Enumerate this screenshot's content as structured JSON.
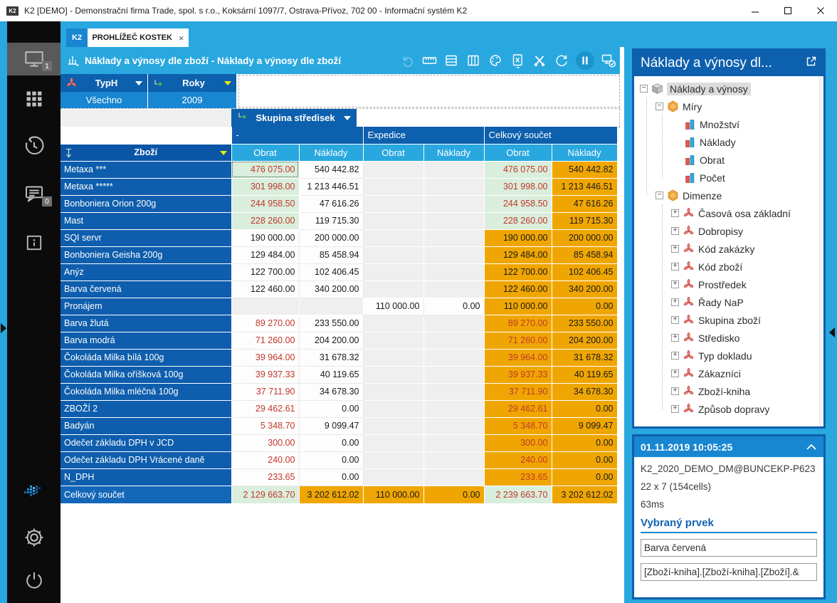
{
  "window": {
    "title": "K2 [DEMO] - Demonstrační firma Trade, spol. s r.o., Koksární 1097/7, Ostrava-Přívoz, 702 00 - Informační systém K2"
  },
  "tabs": {
    "home": "K2",
    "active": "PROHLÍŽEČ KOSTEK",
    "close": "×"
  },
  "sidebar": {
    "items": [
      {
        "icon": "desktop",
        "badge": "1",
        "active": true
      },
      {
        "icon": "apps-grid"
      },
      {
        "icon": "history"
      },
      {
        "icon": "messages",
        "badge": "0"
      },
      {
        "icon": "info"
      }
    ],
    "bottom_items": [
      {
        "icon": "k2-logo"
      },
      {
        "icon": "settings-gear"
      },
      {
        "icon": "power"
      }
    ]
  },
  "toolbar": {
    "title": "Náklady a výnosy dle zboží - Náklady a výnosy dle zboží",
    "icons": [
      "undo",
      "ruler",
      "rows",
      "columns",
      "palette",
      "excel-export",
      "design-tools",
      "refresh",
      "pause",
      "connection-status"
    ]
  },
  "filters": [
    {
      "name": "TypH",
      "value": "Všechno",
      "icon": "dimension",
      "arrow": "white"
    },
    {
      "name": "Roky",
      "value": "2009",
      "icon": "hierarchy",
      "arrow": "yellow"
    }
  ],
  "column_filter": {
    "name": "Skupina středisek",
    "icon": "hierarchy",
    "arrow": "white"
  },
  "pivot": {
    "row_header": "Zboží",
    "groups": [
      "-",
      "Expedice",
      "Celkový součet"
    ],
    "measures": [
      "Obrat",
      "Náklady"
    ],
    "rows": [
      {
        "label": "Metaxa ***",
        "cells": [
          [
            "476 075.00",
            "g",
            "r",
            "sel"
          ],
          [
            "540 442.82",
            "w",
            "k"
          ],
          [
            "",
            "e",
            "k"
          ],
          [
            "",
            "e",
            "k"
          ],
          [
            "476 075.00",
            "g",
            "r"
          ],
          [
            "540 442.82",
            "o",
            "k"
          ]
        ]
      },
      {
        "label": "Metaxa *****",
        "cells": [
          [
            "301 998.00",
            "g",
            "r"
          ],
          [
            "1 213 446.51",
            "w",
            "k"
          ],
          [
            "",
            "e",
            "k"
          ],
          [
            "",
            "e",
            "k"
          ],
          [
            "301 998.00",
            "g",
            "r"
          ],
          [
            "1 213 446.51",
            "o",
            "k"
          ]
        ]
      },
      {
        "label": "Bonboniera Orion 200g",
        "cells": [
          [
            "244 958.50",
            "g",
            "r"
          ],
          [
            "47 616.26",
            "w",
            "k"
          ],
          [
            "",
            "e",
            "k"
          ],
          [
            "",
            "e",
            "k"
          ],
          [
            "244 958.50",
            "g",
            "r"
          ],
          [
            "47 616.26",
            "o",
            "k"
          ]
        ]
      },
      {
        "label": "Mast",
        "cells": [
          [
            "228 260.00",
            "g",
            "r"
          ],
          [
            "119 715.30",
            "w",
            "k"
          ],
          [
            "",
            "e",
            "k"
          ],
          [
            "",
            "e",
            "k"
          ],
          [
            "228 260.00",
            "g",
            "r"
          ],
          [
            "119 715.30",
            "o",
            "k"
          ]
        ]
      },
      {
        "label": "SQI servr",
        "cells": [
          [
            "190 000.00",
            "w",
            "k"
          ],
          [
            "200 000.00",
            "w",
            "k"
          ],
          [
            "",
            "e",
            "k"
          ],
          [
            "",
            "e",
            "k"
          ],
          [
            "190 000.00",
            "o",
            "k"
          ],
          [
            "200 000.00",
            "o",
            "k"
          ]
        ]
      },
      {
        "label": "Bonboniera Geisha 200g",
        "cells": [
          [
            "129 484.00",
            "w",
            "k"
          ],
          [
            "85 458.94",
            "w",
            "k"
          ],
          [
            "",
            "e",
            "k"
          ],
          [
            "",
            "e",
            "k"
          ],
          [
            "129 484.00",
            "o",
            "k"
          ],
          [
            "85 458.94",
            "o",
            "k"
          ]
        ]
      },
      {
        "label": "Anýz",
        "cells": [
          [
            "122 700.00",
            "w",
            "k"
          ],
          [
            "102 406.45",
            "w",
            "k"
          ],
          [
            "",
            "e",
            "k"
          ],
          [
            "",
            "e",
            "k"
          ],
          [
            "122 700.00",
            "o",
            "k"
          ],
          [
            "102 406.45",
            "o",
            "k"
          ]
        ]
      },
      {
        "label": "Barva červená",
        "cells": [
          [
            "122 460.00",
            "w",
            "k"
          ],
          [
            "340 200.00",
            "w",
            "k"
          ],
          [
            "",
            "e",
            "k"
          ],
          [
            "",
            "e",
            "k"
          ],
          [
            "122 460.00",
            "o",
            "k"
          ],
          [
            "340 200.00",
            "o",
            "k"
          ]
        ]
      },
      {
        "label": "Pronájem",
        "cells": [
          [
            "",
            "e",
            "k"
          ],
          [
            "",
            "e",
            "k"
          ],
          [
            "110 000.00",
            "w",
            "k"
          ],
          [
            "0.00",
            "w",
            "k"
          ],
          [
            "110 000.00",
            "o",
            "k"
          ],
          [
            "0.00",
            "o",
            "k"
          ]
        ]
      },
      {
        "label": "Barva žlutá",
        "cells": [
          [
            "89 270.00",
            "w",
            "r"
          ],
          [
            "233 550.00",
            "w",
            "k"
          ],
          [
            "",
            "e",
            "k"
          ],
          [
            "",
            "e",
            "k"
          ],
          [
            "89 270.00",
            "o",
            "r"
          ],
          [
            "233 550.00",
            "o",
            "k"
          ]
        ]
      },
      {
        "label": "Barva modrá",
        "cells": [
          [
            "71 260.00",
            "w",
            "r"
          ],
          [
            "204 200.00",
            "w",
            "k"
          ],
          [
            "",
            "e",
            "k"
          ],
          [
            "",
            "e",
            "k"
          ],
          [
            "71 260.00",
            "o",
            "r"
          ],
          [
            "204 200.00",
            "o",
            "k"
          ]
        ]
      },
      {
        "label": "Čokoláda Milka bílá 100g",
        "cells": [
          [
            "39 964.00",
            "w",
            "r"
          ],
          [
            "31 678.32",
            "w",
            "k"
          ],
          [
            "",
            "e",
            "k"
          ],
          [
            "",
            "e",
            "k"
          ],
          [
            "39 964.00",
            "o",
            "r"
          ],
          [
            "31 678.32",
            "o",
            "k"
          ]
        ]
      },
      {
        "label": "Čokoláda Milka oříšková 100g",
        "cells": [
          [
            "39 937.33",
            "w",
            "r"
          ],
          [
            "40 119.65",
            "w",
            "k"
          ],
          [
            "",
            "e",
            "k"
          ],
          [
            "",
            "e",
            "k"
          ],
          [
            "39 937.33",
            "o",
            "r"
          ],
          [
            "40 119.65",
            "o",
            "k"
          ]
        ]
      },
      {
        "label": "Čokoláda Milka mléčná 100g",
        "cells": [
          [
            "37 711.90",
            "w",
            "r"
          ],
          [
            "34 678.30",
            "w",
            "k"
          ],
          [
            "",
            "e",
            "k"
          ],
          [
            "",
            "e",
            "k"
          ],
          [
            "37 711.90",
            "o",
            "r"
          ],
          [
            "34 678.30",
            "o",
            "k"
          ]
        ]
      },
      {
        "label": "ZBOŽÍ 2",
        "cells": [
          [
            "29 462.61",
            "w",
            "r"
          ],
          [
            "0.00",
            "w",
            "k"
          ],
          [
            "",
            "e",
            "k"
          ],
          [
            "",
            "e",
            "k"
          ],
          [
            "29 462.61",
            "o",
            "r"
          ],
          [
            "0.00",
            "o",
            "k"
          ]
        ]
      },
      {
        "label": "Badyán",
        "cells": [
          [
            "5 348.70",
            "w",
            "r"
          ],
          [
            "9 099.47",
            "w",
            "k"
          ],
          [
            "",
            "e",
            "k"
          ],
          [
            "",
            "e",
            "k"
          ],
          [
            "5 348.70",
            "o",
            "r"
          ],
          [
            "9 099.47",
            "o",
            "k"
          ]
        ]
      },
      {
        "label": "Odečet základu DPH v JCD",
        "cells": [
          [
            "300.00",
            "w",
            "r"
          ],
          [
            "0.00",
            "w",
            "k"
          ],
          [
            "",
            "e",
            "k"
          ],
          [
            "",
            "e",
            "k"
          ],
          [
            "300.00",
            "o",
            "r"
          ],
          [
            "0.00",
            "o",
            "k"
          ]
        ]
      },
      {
        "label": "Odečet základu DPH Vrácené daně",
        "cells": [
          [
            "240.00",
            "w",
            "r"
          ],
          [
            "0.00",
            "w",
            "k"
          ],
          [
            "",
            "e",
            "k"
          ],
          [
            "",
            "e",
            "k"
          ],
          [
            "240.00",
            "o",
            "r"
          ],
          [
            "0.00",
            "o",
            "k"
          ]
        ]
      },
      {
        "label": "N_DPH",
        "cells": [
          [
            "233.65",
            "w",
            "r"
          ],
          [
            "0.00",
            "w",
            "k"
          ],
          [
            "",
            "e",
            "k"
          ],
          [
            "",
            "e",
            "k"
          ],
          [
            "233.65",
            "o",
            "r"
          ],
          [
            "0.00",
            "o",
            "k"
          ]
        ]
      },
      {
        "label": "Celkový součet",
        "total": true,
        "cells": [
          [
            "2 129 663.70",
            "g",
            "r"
          ],
          [
            "3 202 612.02",
            "o",
            "k"
          ],
          [
            "110 000.00",
            "o",
            "k"
          ],
          [
            "0.00",
            "o",
            "k"
          ],
          [
            "2 239 663.70",
            "g",
            "r"
          ],
          [
            "3 202 612.02",
            "o",
            "k"
          ]
        ]
      }
    ]
  },
  "side_panel": {
    "title": "Náklady a výnosy dl...",
    "tree": [
      {
        "label": "Náklady a výnosy",
        "icon": "cube",
        "level": 0,
        "exp": "-",
        "selected": true
      },
      {
        "label": "Míry",
        "icon": "measure-folder",
        "level": 1,
        "exp": "-"
      },
      {
        "label": "Množství",
        "icon": "measure",
        "level": 2
      },
      {
        "label": "Náklady",
        "icon": "measure",
        "level": 2
      },
      {
        "label": "Obrat",
        "icon": "measure",
        "level": 2
      },
      {
        "label": "Počet",
        "icon": "measure",
        "level": 2
      },
      {
        "label": "Dimenze",
        "icon": "measure-folder",
        "level": 1,
        "exp": "-"
      },
      {
        "label": "Časová osa základní",
        "icon": "dimension",
        "level": 2,
        "exp": "+"
      },
      {
        "label": "Dobropisy",
        "icon": "dimension",
        "level": 2,
        "exp": "+"
      },
      {
        "label": "Kód zakázky",
        "icon": "dimension",
        "level": 2,
        "exp": "+"
      },
      {
        "label": "Kód zboží",
        "icon": "dimension",
        "level": 2,
        "exp": "+"
      },
      {
        "label": "Prostředek",
        "icon": "dimension",
        "level": 2,
        "exp": "+"
      },
      {
        "label": "Řady NaP",
        "icon": "dimension",
        "level": 2,
        "exp": "+"
      },
      {
        "label": "Skupina zboží",
        "icon": "dimension",
        "level": 2,
        "exp": "+"
      },
      {
        "label": "Středisko",
        "icon": "dimension",
        "level": 2,
        "exp": "+"
      },
      {
        "label": "Typ dokladu",
        "icon": "dimension",
        "level": 2,
        "exp": "+"
      },
      {
        "label": "Zákazníci",
        "icon": "dimension",
        "level": 2,
        "exp": "+"
      },
      {
        "label": "Zboží-kniha",
        "icon": "dimension",
        "level": 2,
        "exp": "+"
      },
      {
        "label": "Způsob dopravy",
        "icon": "dimension",
        "level": 2,
        "exp": "+"
      }
    ]
  },
  "info_panel": {
    "timestamp": "01.11.2019 10:05:25",
    "connection": "K2_2020_DEMO_DM@BUNCEKP-P623",
    "grid_size": "22 x 7 (154cells)",
    "duration": "63ms",
    "selected_heading": "Vybraný prvek",
    "selected_name": "Barva červená",
    "selected_path": "[Zboží-kniha].[Zboží-kniha].[Zboží].&"
  },
  "colors": {
    "accent_cyan": "#29A7DF",
    "header_blue": "#0D60AD",
    "value_blue": "#1886D1",
    "total_orange": "#F0A602",
    "max_green": "#D9EEDC",
    "negative_red": "#C3372B"
  }
}
